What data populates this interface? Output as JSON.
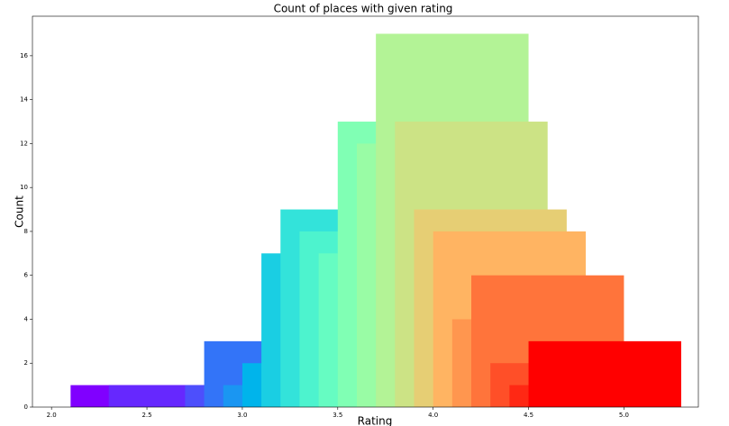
{
  "chart_data": {
    "type": "bar",
    "title": "Count of places with given rating",
    "x_label": "Rating",
    "y_label": "Count",
    "x": [
      2.5,
      2.7,
      3.1,
      3.2,
      3.3,
      3.4,
      3.5,
      3.6,
      3.7,
      3.8,
      3.9,
      4.0,
      4.1,
      4.2,
      4.3,
      4.4,
      4.5,
      4.6,
      4.7,
      4.8,
      4.9
    ],
    "values": [
      1,
      1,
      1,
      3,
      1,
      2,
      7,
      9,
      8,
      7,
      13,
      12,
      17,
      13,
      9,
      8,
      4,
      6,
      2,
      1,
      3
    ],
    "colors": [
      "#8000ff",
      "#6628fe",
      "#4d4ffc",
      "#3374f8",
      "#1a96f2",
      "#00b4eb",
      "#1acee3",
      "#33e3da",
      "#4df3ce",
      "#66fcc2",
      "#80ffb4",
      "#99fca5",
      "#b3f396",
      "#cce385",
      "#e6ce74",
      "#ffb462",
      "#ff964f",
      "#ff743b",
      "#ff4f28",
      "#ff2814",
      "#ff0000"
    ],
    "bar_width": 0.8,
    "xlim": [
      1.9,
      5.39
    ],
    "ylim": [
      0,
      17.8
    ],
    "xticks": [
      {
        "value": 2.0,
        "label": "2.0"
      },
      2.5,
      {
        "value": 3.0,
        "label": "3.0"
      },
      3.5,
      {
        "value": 4.0,
        "label": "4.0"
      },
      4.5,
      {
        "value": 5.0,
        "label": "5.0"
      }
    ],
    "yticks": [
      0,
      2,
      4,
      6,
      8,
      10,
      12,
      14,
      16
    ]
  }
}
